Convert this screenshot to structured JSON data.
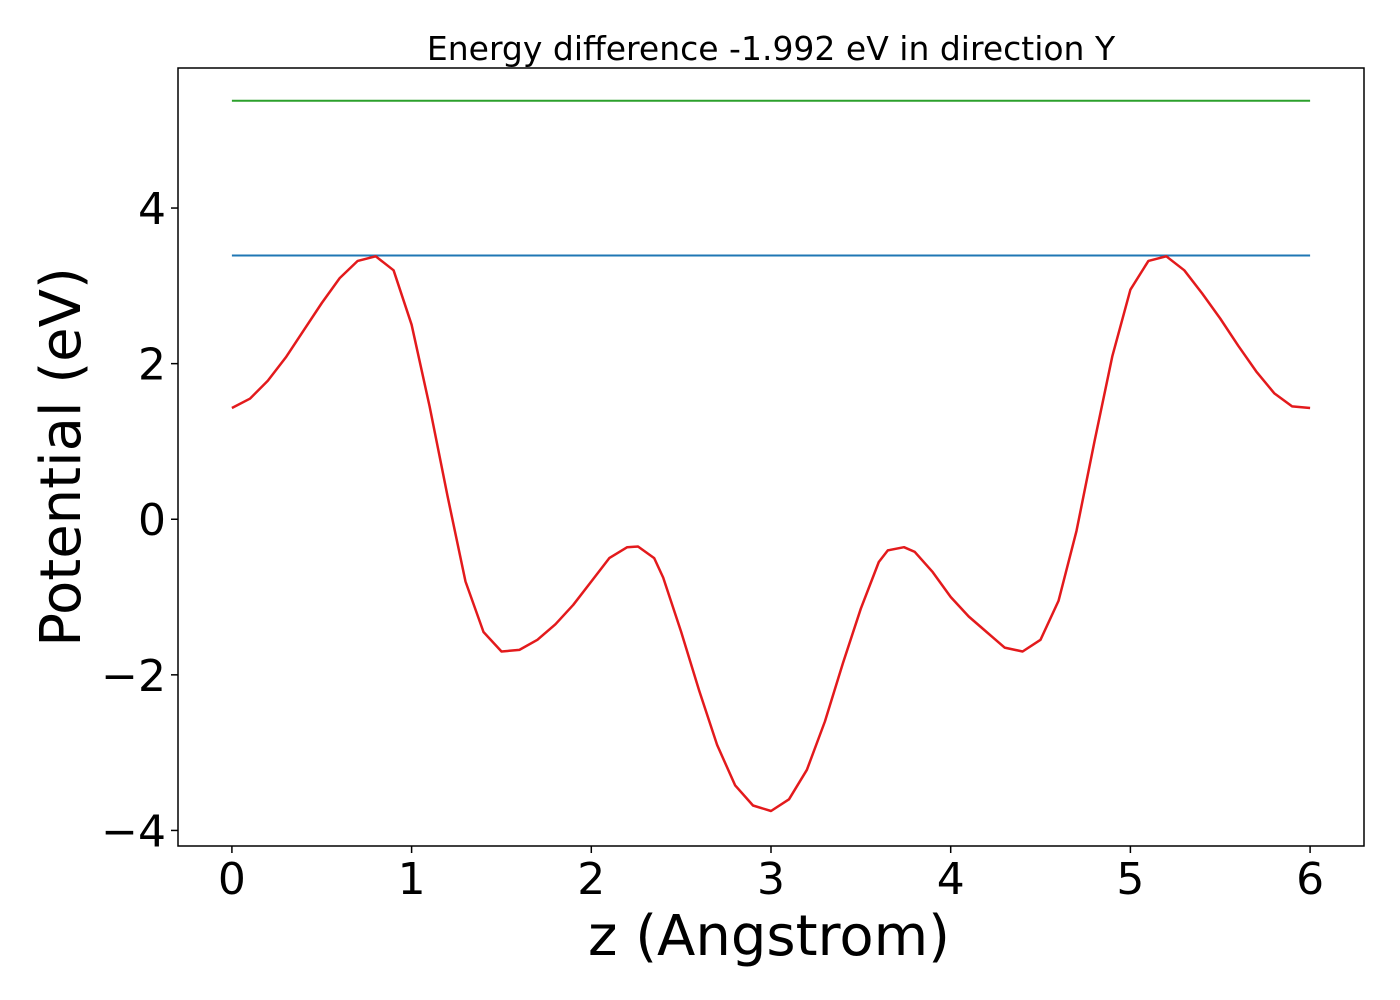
{
  "chart_data": {
    "type": "line",
    "title": "Energy difference -1.992 eV in direction Y",
    "xlabel": "z (Angstrom)",
    "ylabel": "Potential (eV)",
    "xlim": [
      -0.3,
      6.3
    ],
    "ylim": [
      -4.2,
      5.8
    ],
    "xticks": [
      0,
      1,
      2,
      3,
      4,
      5,
      6
    ],
    "xtick_labels": [
      "0",
      "1",
      "2",
      "3",
      "4",
      "5",
      "6"
    ],
    "yticks": [
      -4,
      -2,
      0,
      2,
      4
    ],
    "ytick_labels": [
      "−4",
      "−2",
      "0",
      "2",
      "4"
    ],
    "grid": false,
    "series": [
      {
        "color": "#2ca02c",
        "x": [
          0,
          6
        ],
        "y": [
          5.38,
          5.38
        ]
      },
      {
        "color": "#1f77b4",
        "x": [
          0,
          6
        ],
        "y": [
          3.39,
          3.39
        ]
      },
      {
        "color": "#e31a1c",
        "x": [
          0,
          0.1,
          0.2,
          0.3,
          0.4,
          0.5,
          0.6,
          0.7,
          0.8,
          0.9,
          1.0,
          1.1,
          1.2,
          1.3,
          1.4,
          1.5,
          1.6,
          1.7,
          1.8,
          1.9,
          2.0,
          2.1,
          2.2,
          2.26,
          2.35,
          2.4,
          2.5,
          2.6,
          2.7,
          2.8,
          2.9,
          3.0,
          3.1,
          3.2,
          3.3,
          3.4,
          3.5,
          3.6,
          3.65,
          3.74,
          3.8,
          3.9,
          4.0,
          4.1,
          4.2,
          4.3,
          4.4,
          4.5,
          4.6,
          4.7,
          4.8,
          4.9,
          5.0,
          5.1,
          5.2,
          5.3,
          5.4,
          5.5,
          5.6,
          5.7,
          5.8,
          5.9,
          6.0
        ],
        "y": [
          1.43,
          1.55,
          1.78,
          2.08,
          2.43,
          2.78,
          3.1,
          3.32,
          3.38,
          3.2,
          2.5,
          1.45,
          0.3,
          -0.8,
          -1.45,
          -1.7,
          -1.68,
          -1.55,
          -1.35,
          -1.1,
          -0.8,
          -0.5,
          -0.36,
          -0.35,
          -0.5,
          -0.75,
          -1.45,
          -2.2,
          -2.9,
          -3.42,
          -3.68,
          -3.75,
          -3.6,
          -3.22,
          -2.6,
          -1.85,
          -1.15,
          -0.55,
          -0.4,
          -0.36,
          -0.42,
          -0.68,
          -1.0,
          -1.25,
          -1.45,
          -1.65,
          -1.7,
          -1.55,
          -1.05,
          -0.15,
          1.0,
          2.1,
          2.95,
          3.32,
          3.38,
          3.2,
          2.9,
          2.58,
          2.23,
          1.9,
          1.62,
          1.45,
          1.43
        ]
      }
    ]
  }
}
